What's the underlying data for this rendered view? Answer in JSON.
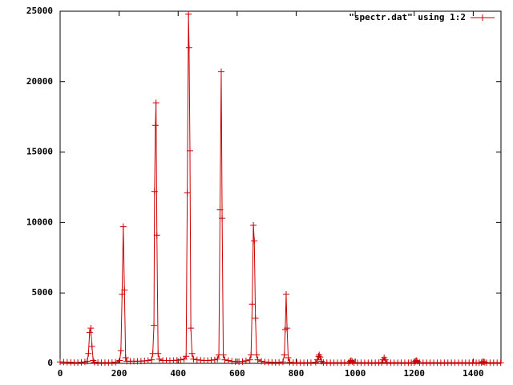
{
  "chart_data": {
    "type": "line",
    "x": [
      0,
      12,
      24,
      36,
      48,
      60,
      72,
      84,
      92,
      96,
      100,
      104,
      108,
      112,
      116,
      128,
      140,
      152,
      164,
      176,
      188,
      202,
      206,
      210,
      214,
      218,
      222,
      226,
      238,
      250,
      262,
      274,
      286,
      298,
      310,
      314,
      318,
      320,
      323,
      325,
      328,
      332,
      336,
      348,
      360,
      372,
      384,
      396,
      408,
      420,
      427,
      431,
      435,
      437,
      440,
      443,
      447,
      452,
      464,
      476,
      488,
      500,
      512,
      524,
      533,
      538,
      542,
      546,
      549,
      553,
      558,
      570,
      582,
      594,
      606,
      618,
      630,
      643,
      647,
      651,
      655,
      658,
      662,
      666,
      670,
      682,
      694,
      706,
      718,
      730,
      742,
      755,
      760,
      763,
      766,
      769,
      773,
      778,
      790,
      802,
      814,
      826,
      838,
      850,
      866,
      872,
      876,
      878,
      881,
      886,
      892,
      904,
      916,
      928,
      940,
      952,
      964,
      978,
      983,
      986,
      990,
      996,
      1008,
      1020,
      1032,
      1044,
      1056,
      1068,
      1080,
      1090,
      1094,
      1098,
      1102,
      1108,
      1120,
      1132,
      1144,
      1156,
      1168,
      1180,
      1190,
      1200,
      1204,
      1207,
      1211,
      1218,
      1230,
      1242,
      1254,
      1266,
      1278,
      1290,
      1302,
      1314,
      1326,
      1338,
      1350,
      1362,
      1374,
      1386,
      1398,
      1410,
      1420,
      1428,
      1432,
      1435,
      1439,
      1445,
      1457,
      1469,
      1481,
      1493
    ],
    "series": [
      {
        "name": "\"spectr.dat\" using 1:2",
        "color": "#cc0000",
        "values": [
          100,
          90,
          80,
          70,
          60,
          60,
          70,
          100,
          150,
          700,
          2200,
          2500,
          1200,
          200,
          80,
          60,
          50,
          50,
          50,
          60,
          80,
          200,
          900,
          4900,
          9700,
          5200,
          400,
          150,
          150,
          150,
          150,
          160,
          180,
          200,
          250,
          700,
          2700,
          12200,
          16900,
          18500,
          9100,
          700,
          300,
          200,
          200,
          190,
          200,
          220,
          250,
          300,
          500,
          12100,
          24800,
          22400,
          15100,
          2500,
          700,
          300,
          250,
          220,
          200,
          200,
          220,
          250,
          300,
          600,
          10900,
          20700,
          10300,
          600,
          250,
          200,
          150,
          120,
          120,
          130,
          180,
          250,
          600,
          4200,
          9800,
          8700,
          3200,
          600,
          250,
          150,
          100,
          80,
          70,
          60,
          70,
          100,
          600,
          2400,
          4900,
          2500,
          400,
          80,
          50,
          40,
          40,
          40,
          40,
          50,
          80,
          250,
          500,
          600,
          450,
          150,
          60,
          50,
          40,
          40,
          40,
          40,
          50,
          60,
          150,
          200,
          130,
          50,
          40,
          40,
          40,
          40,
          40,
          40,
          50,
          60,
          250,
          400,
          250,
          60,
          40,
          40,
          40,
          40,
          40,
          40,
          50,
          60,
          150,
          200,
          150,
          50,
          40,
          40,
          40,
          40,
          40,
          40,
          40,
          40,
          40,
          40,
          40,
          40,
          40,
          40,
          40,
          40,
          40,
          50,
          100,
          120,
          80,
          40,
          40,
          40,
          40,
          40
        ]
      }
    ],
    "xlim": [
      0,
      1494
    ],
    "ylim": [
      0,
      25000
    ],
    "xticks": [
      0,
      200,
      400,
      600,
      800,
      1000,
      1200,
      1400
    ],
    "yticks": [
      0,
      5000,
      10000,
      15000,
      20000,
      25000
    ],
    "legend": "top-right"
  }
}
